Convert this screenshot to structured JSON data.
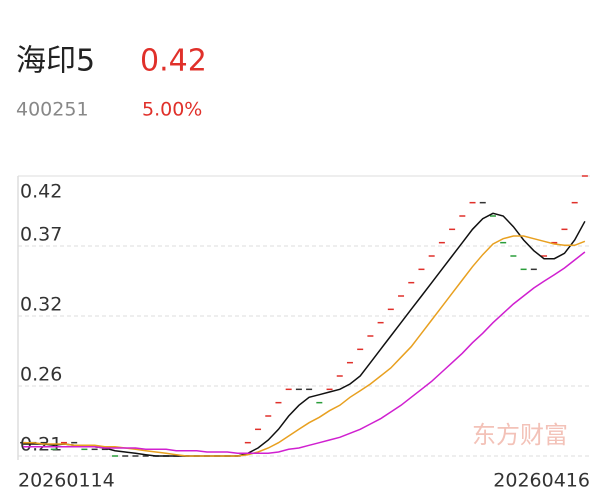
{
  "header": {
    "name": "海印5",
    "price": "0.42",
    "code": "400251",
    "change": "5.00%"
  },
  "chart_data": {
    "type": "stock",
    "watermark": "东方财富",
    "x_start_label": "20260114",
    "x_end_label": "20260416",
    "ylim": [
      0.21,
      0.42
    ],
    "yticks": [
      {
        "value": 0.21,
        "label": "0.21"
      },
      {
        "value": 0.2625,
        "label": "0.26"
      },
      {
        "value": 0.315,
        "label": "0.32"
      },
      {
        "value": 0.3675,
        "label": "0.37"
      },
      0.42
    ],
    "grid": true,
    "up_color": "#e0302a",
    "down_color": "#2a9d3a",
    "flat_color": "#333333",
    "values": [
      0.22,
      0.22,
      0.22,
      0.215,
      0.22,
      0.22,
      0.215,
      0.215,
      0.215,
      0.21,
      0.21,
      0.21,
      0.21,
      0.21,
      0.21,
      0.21,
      0.21,
      0.21,
      0.21,
      0.21,
      0.21,
      0.21,
      0.22,
      0.23,
      0.24,
      0.25,
      0.26,
      0.26,
      0.26,
      0.25,
      0.26,
      0.27,
      0.28,
      0.29,
      0.3,
      0.31,
      0.32,
      0.33,
      0.34,
      0.35,
      0.36,
      0.37,
      0.38,
      0.39,
      0.4,
      0.4,
      0.39,
      0.37,
      0.36,
      0.35,
      0.35,
      0.36,
      0.37,
      0.38,
      0.4,
      0.42
    ],
    "series": [
      {
        "color": "#111111",
        "values": [
          0.219,
          0.219,
          0.219,
          0.218,
          0.219,
          0.218,
          0.217,
          0.217,
          0.216,
          0.214,
          0.213,
          0.212,
          0.211,
          0.21,
          0.21,
          0.21,
          0.21,
          0.21,
          0.21,
          0.21,
          0.21,
          0.21,
          0.212,
          0.216,
          0.222,
          0.23,
          0.24,
          0.248,
          0.254,
          0.256,
          0.258,
          0.26,
          0.264,
          0.27,
          0.28,
          0.29,
          0.3,
          0.31,
          0.32,
          0.33,
          0.34,
          0.35,
          0.36,
          0.37,
          0.38,
          0.388,
          0.392,
          0.39,
          0.382,
          0.372,
          0.364,
          0.358,
          0.358,
          0.362,
          0.372,
          0.386
        ]
      },
      {
        "color": "#e8a020",
        "values": [
          0.22,
          0.22,
          0.219,
          0.219,
          0.219,
          0.218,
          0.218,
          0.218,
          0.217,
          0.217,
          0.216,
          0.215,
          0.214,
          0.213,
          0.212,
          0.211,
          0.21,
          0.21,
          0.21,
          0.21,
          0.21,
          0.21,
          0.211,
          0.213,
          0.216,
          0.22,
          0.225,
          0.23,
          0.235,
          0.239,
          0.244,
          0.248,
          0.254,
          0.259,
          0.264,
          0.27,
          0.276,
          0.284,
          0.292,
          0.302,
          0.312,
          0.322,
          0.332,
          0.342,
          0.352,
          0.361,
          0.369,
          0.373,
          0.375,
          0.375,
          0.373,
          0.371,
          0.369,
          0.368,
          0.368,
          0.371
        ]
      },
      {
        "color": "#d020d0",
        "values": [
          0.217,
          0.217,
          0.217,
          0.217,
          0.217,
          0.217,
          0.217,
          0.217,
          0.216,
          0.216,
          0.216,
          0.216,
          0.215,
          0.215,
          0.215,
          0.214,
          0.214,
          0.214,
          0.213,
          0.213,
          0.213,
          0.212,
          0.212,
          0.212,
          0.212,
          0.213,
          0.215,
          0.216,
          0.218,
          0.22,
          0.222,
          0.224,
          0.227,
          0.23,
          0.234,
          0.238,
          0.243,
          0.248,
          0.254,
          0.26,
          0.266,
          0.273,
          0.28,
          0.287,
          0.295,
          0.302,
          0.31,
          0.317,
          0.324,
          0.33,
          0.336,
          0.341,
          0.346,
          0.351,
          0.357,
          0.363
        ]
      }
    ]
  }
}
